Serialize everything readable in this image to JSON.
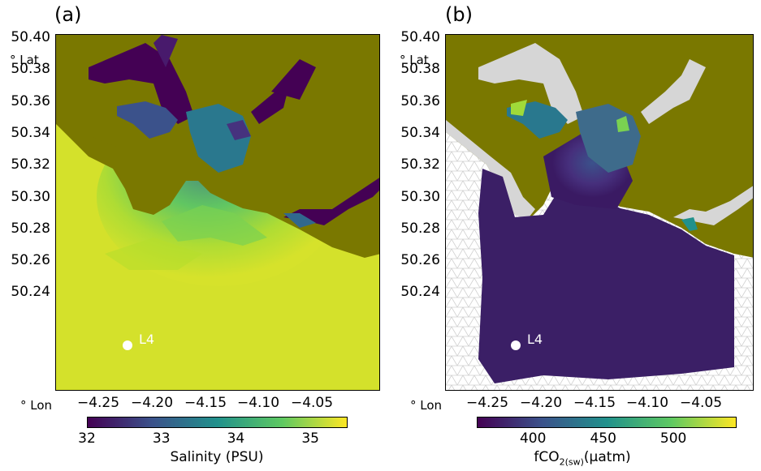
{
  "panels": [
    {
      "label": "(a)",
      "lat_ticks": [
        "50.40",
        "50.38",
        "50.36",
        "50.34",
        "50.32",
        "50.30",
        "50.28",
        "50.26",
        "50.24"
      ],
      "lon_ticks": [
        "−4.25",
        "−4.20",
        "−4.15",
        "−4.10",
        "−4.05"
      ],
      "lat_unit": "° Lat",
      "lon_unit": "° Lon",
      "station": "L4",
      "colorbar": {
        "ticks": [
          "32",
          "33",
          "34",
          "35"
        ],
        "title": "Salinity (PSU)",
        "range": [
          32,
          35.5
        ],
        "colormap": "viridis"
      }
    },
    {
      "label": "(b)",
      "lat_ticks": [
        "50.40",
        "50.38",
        "50.36",
        "50.34",
        "50.32",
        "50.30",
        "50.28",
        "50.26",
        "50.24"
      ],
      "lon_ticks": [
        "−4.25",
        "−4.20",
        "−4.15",
        "−4.10",
        "−4.05"
      ],
      "lat_unit": "° Lat",
      "lon_unit": "° Lon",
      "station": "L4",
      "colorbar": {
        "ticks": [
          "400",
          "450",
          "500"
        ],
        "title_main": "fCO",
        "title_sub": "2(sw)",
        "title_unit": "(μatm)",
        "range": [
          360,
          545
        ],
        "colormap": "viridis"
      }
    }
  ],
  "colors": {
    "land": "#7a7800",
    "sea_high_salinity": "#d6e22b",
    "low_fco2": "#3b1f66",
    "mesh": "#d4d4d4",
    "viridis": [
      "#440154",
      "#3b528b",
      "#21918c",
      "#5ec962",
      "#fde725"
    ]
  }
}
